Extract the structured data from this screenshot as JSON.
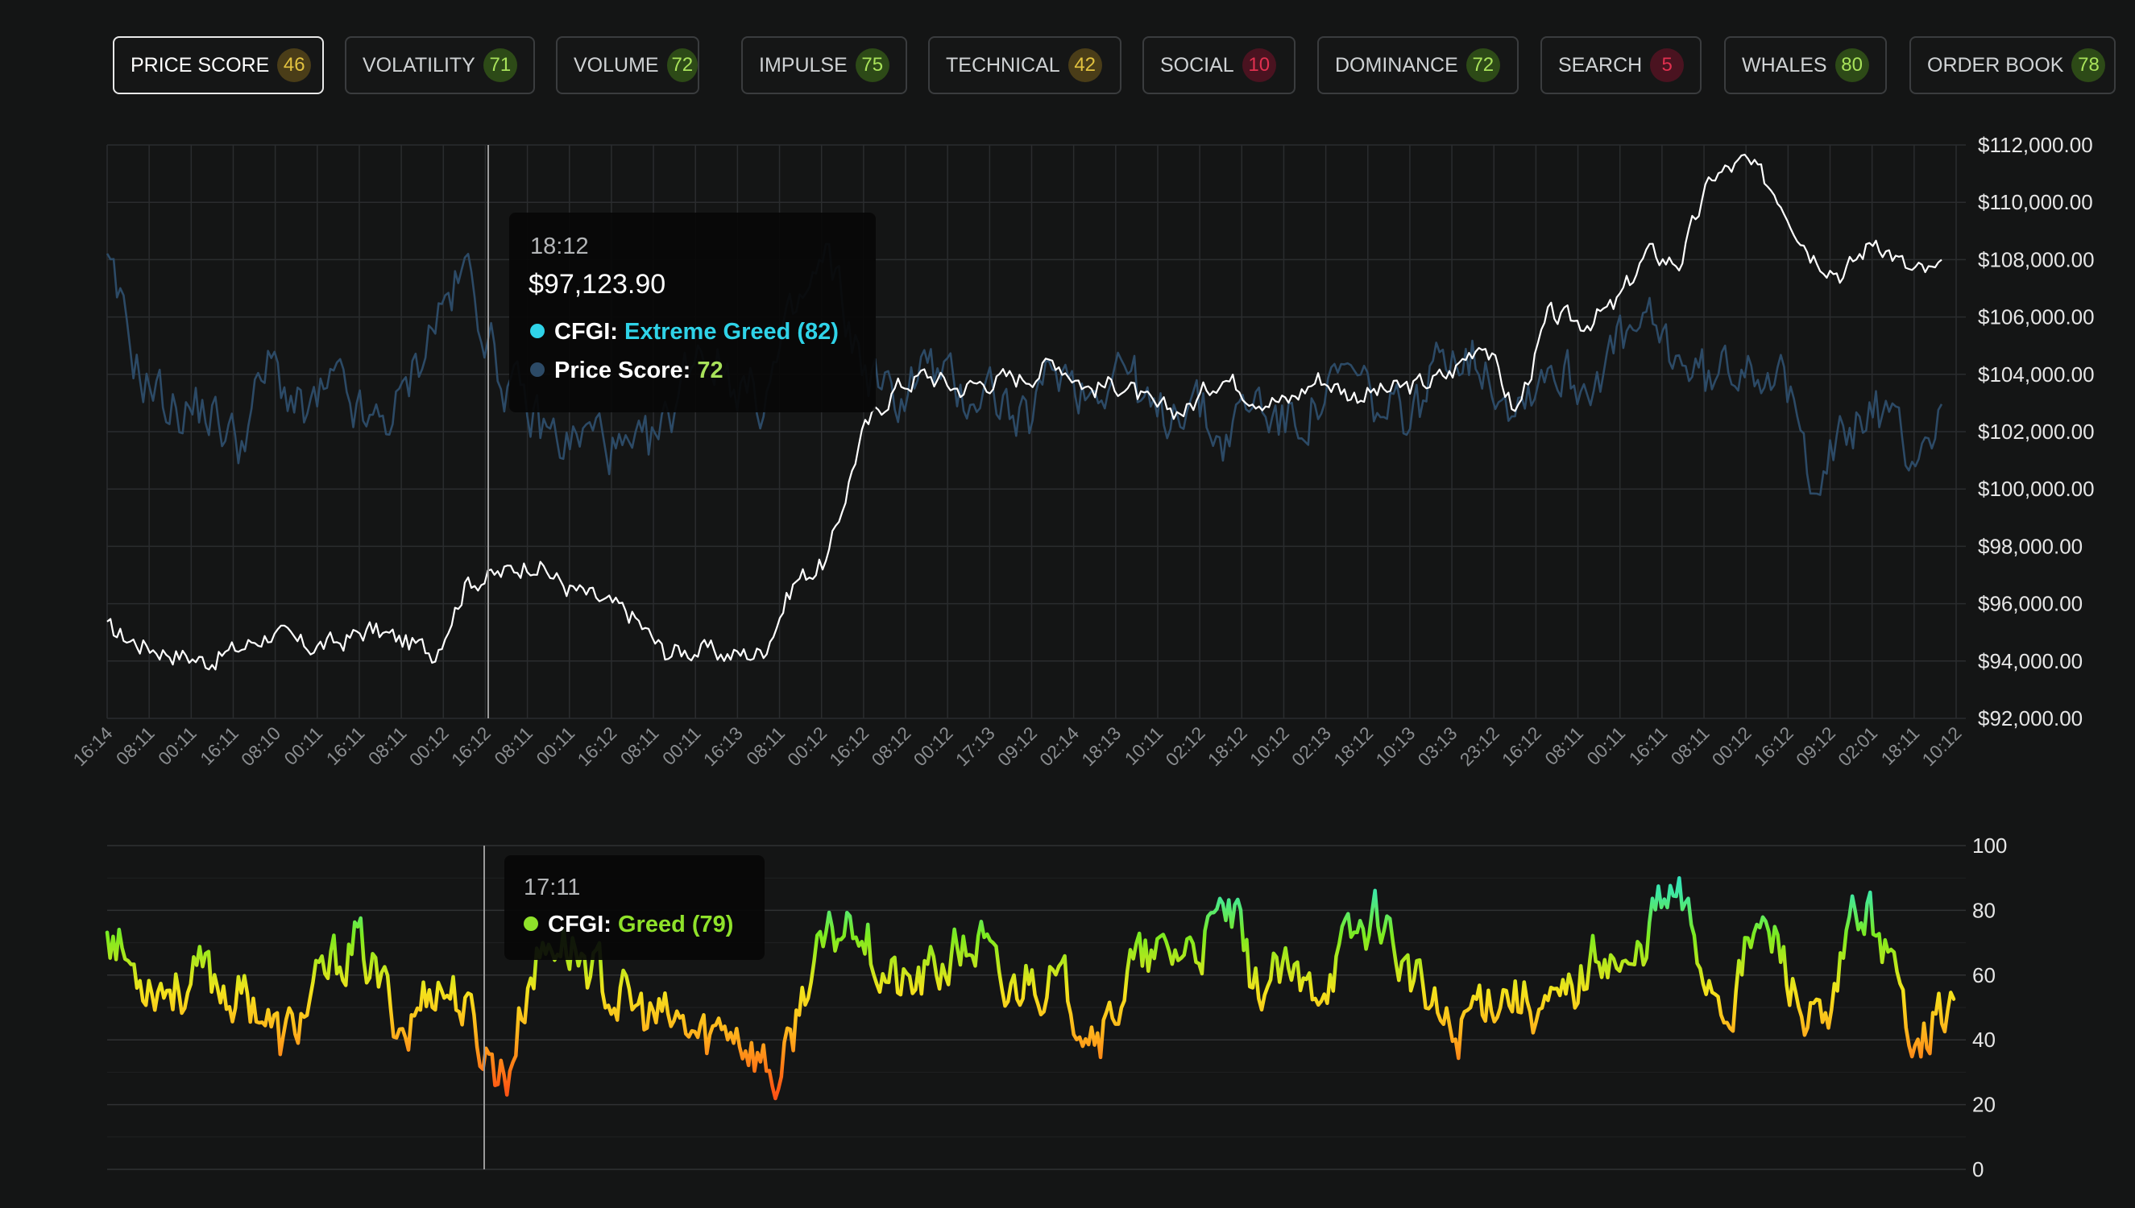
{
  "tabs": [
    {
      "label": "PRICE SCORE",
      "score": "46",
      "color": "#e2c23f",
      "bg": "#4a3d18",
      "active": true
    },
    {
      "label": "VOLATILITY",
      "score": "71",
      "color": "#a8e25a",
      "bg": "#2d4a17",
      "active": false
    },
    {
      "label": "VOLUME",
      "score": "72",
      "color": "#a8e25a",
      "bg": "#2d4a17",
      "active": false
    },
    {
      "label": "IMPULSE",
      "score": "75",
      "color": "#a8e25a",
      "bg": "#2d4a17",
      "active": false
    },
    {
      "label": "TECHNICAL",
      "score": "42",
      "color": "#e2c23f",
      "bg": "#4a3d18",
      "active": false
    },
    {
      "label": "SOCIAL",
      "score": "10",
      "color": "#e0304f",
      "bg": "#4a1320",
      "active": false
    },
    {
      "label": "DOMINANCE",
      "score": "72",
      "color": "#a8e25a",
      "bg": "#2d4a17",
      "active": false
    },
    {
      "label": "SEARCH",
      "score": "5",
      "color": "#e0304f",
      "bg": "#4a1320",
      "active": false
    },
    {
      "label": "WHALES",
      "score": "80",
      "color": "#a8e25a",
      "bg": "#2d4a17",
      "active": false
    },
    {
      "label": "ORDER BOOK",
      "score": "78",
      "color": "#a8e25a",
      "bg": "#2d4a17",
      "active": false
    }
  ],
  "tooltip_main": {
    "time": "18:12",
    "price": "$97,123.90",
    "cfgi_label": "CFGI:",
    "cfgi_value": "Extreme Greed (82)",
    "score_label": "Price Score:",
    "score_value": "72",
    "cfgi_color": "#2fd3e8",
    "score_color": "#a8e25a",
    "score_dot_color": "#2c4a66"
  },
  "tooltip_sub": {
    "time": "17:11",
    "cfgi_label": "CFGI:",
    "cfgi_value": "Greed (79)",
    "color": "#8fe22a"
  },
  "chart_data": [
    {
      "type": "line",
      "series": [
        {
          "name": "Price",
          "color": "#ffffff",
          "values": [
            95100,
            94600,
            94300,
            94000,
            94400,
            95000,
            94500,
            94600,
            95100,
            94700,
            94300,
            96800,
            97000,
            97500,
            96600,
            96100,
            95600,
            94300,
            94400,
            94200,
            94300,
            96800,
            97500,
            101800,
            103500,
            104000,
            103500,
            103800,
            103900,
            104500,
            103500,
            103700,
            102700,
            102800,
            104000,
            103300,
            103000,
            103900,
            103300,
            103400,
            103600,
            104000,
            105300,
            102600,
            106000,
            105800,
            106300,
            108200,
            107900,
            110900,
            111400,
            110300,
            108300,
            107500,
            108800,
            107600,
            107500
          ]
        },
        {
          "name": "Price Score",
          "color": "#2c4a66",
          "values": [
            78,
            60,
            54,
            54,
            48,
            62,
            52,
            58,
            50,
            55,
            70,
            78,
            60,
            52,
            48,
            50,
            44,
            50,
            66,
            60,
            55,
            70,
            80,
            62,
            55,
            62,
            56,
            58,
            50,
            62,
            57,
            63,
            51,
            57,
            48,
            56,
            51,
            55,
            60,
            52,
            54,
            66,
            62,
            55,
            62,
            58,
            64,
            68,
            63,
            58,
            64,
            60,
            44,
            48,
            55,
            46,
            52
          ]
        }
      ],
      "x_tick_labels": [
        "16:14",
        "08:11",
        "00:11",
        "16:11",
        "08:10",
        "00:11",
        "16:11",
        "08:11",
        "00:12",
        "16:12",
        "08:11",
        "00:11",
        "16:12",
        "08:11",
        "00:11",
        "16:13",
        "08:11",
        "00:12",
        "16:12",
        "08:12",
        "00:12",
        "17:13",
        "09:12",
        "02:14",
        "18:13",
        "10:11",
        "02:12",
        "18:12",
        "10:12",
        "02:13",
        "18:12",
        "10:13",
        "03:13",
        "23:12",
        "16:12",
        "08:11",
        "00:11",
        "16:11",
        "08:11",
        "00:12",
        "16:12",
        "09:12",
        "02:01",
        "18:11",
        "10:12"
      ],
      "y_tick_labels": [
        "$112,000.00",
        "$110,000.00",
        "$108,000.00",
        "$106,000.00",
        "$104,000.00",
        "$102,000.00",
        "$100,000.00",
        "$98,000.00",
        "$96,000.00",
        "$94,000.00",
        "$92,000.00"
      ],
      "ylim": [
        92000,
        112000
      ],
      "score_range": [
        0,
        100
      ],
      "grid": true
    },
    {
      "type": "line",
      "series": [
        {
          "name": "CFGI",
          "values": [
            76,
            62,
            58,
            56,
            60,
            54,
            52,
            38,
            50,
            62,
            70,
            56,
            42,
            58,
            54,
            38,
            28,
            62,
            72,
            66,
            56,
            50,
            46,
            44,
            40,
            46,
            36,
            26,
            58,
            70,
            80,
            62,
            55,
            60,
            66,
            70,
            52,
            62,
            56,
            50,
            42,
            62,
            64,
            68,
            70,
            80,
            56,
            60,
            54,
            62,
            72,
            80,
            62,
            50,
            40,
            54,
            56,
            52,
            48,
            58,
            70,
            58,
            80,
            84,
            62,
            50,
            74,
            70,
            46,
            40,
            80,
            76,
            48,
            44,
            52
          ]
        }
      ],
      "y_tick_labels": [
        "100",
        "80",
        "60",
        "40",
        "20",
        "0"
      ],
      "ylim": [
        0,
        100
      ],
      "grid": true
    }
  ]
}
